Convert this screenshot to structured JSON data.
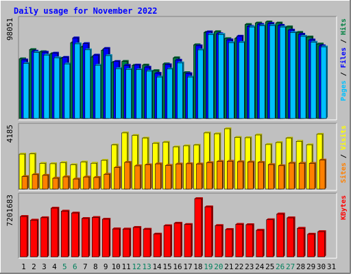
{
  "chart_data": {
    "type": "bar",
    "title": "Daily usage for November 2022",
    "x": [
      "1",
      "2",
      "3",
      "4",
      "5",
      "6",
      "7",
      "8",
      "9",
      "10",
      "11",
      "12",
      "13",
      "14",
      "15",
      "16",
      "17",
      "18",
      "19",
      "20",
      "21",
      "22",
      "23",
      "24",
      "25",
      "26",
      "27",
      "28",
      "29",
      "30",
      "31"
    ],
    "weekend_days": [
      5,
      6,
      12,
      13,
      19,
      20,
      26,
      27
    ],
    "panels": [
      {
        "name": "hits_files_pages",
        "max_label": "98051",
        "ylabel_parts": [
          "Pages",
          "Files",
          "Hits"
        ],
        "series": [
          {
            "name": "Hits",
            "color": "#008040",
            "values": [
              60500,
              69900,
              67700,
              65700,
              61100,
              76800,
              72600,
              62400,
              69200,
              56900,
              57900,
              53900,
              54200,
              48500,
              55400,
              61500,
              46500,
              74700,
              87300,
              88000,
              81000,
              81200,
              95300,
              96800,
              97900,
              96800,
              92900,
              87300,
              82600,
              75500,
              null
            ]
          },
          {
            "name": "Files",
            "color": "#0000ff",
            "values": [
              59400,
              68200,
              67200,
              66200,
              62000,
              81700,
              75900,
              64200,
              71000,
              57800,
              53900,
              54200,
              52000,
              45800,
              54500,
              59100,
              45500,
              73700,
              87800,
              85900,
              79700,
              83400,
              93400,
              95400,
              96300,
              94400,
              89600,
              85400,
              79600,
              73700,
              null
            ]
          },
          {
            "name": "Pages",
            "color": "#00c0ff",
            "values": [
              55800,
              67000,
              64300,
              61500,
              55300,
              75700,
              69600,
              54000,
              63800,
              50500,
              49800,
              49500,
              48000,
              42000,
              50200,
              56300,
              42000,
              69500,
              85200,
              85200,
              76900,
              77200,
              92800,
              94000,
              94300,
              92700,
              87100,
              83300,
              77300,
              72600,
              null
            ]
          }
        ]
      },
      {
        "name": "visits_sites",
        "max_label": "4185",
        "ylabel_parts": [
          "Sites",
          "Visits"
        ],
        "series": [
          {
            "name": "Visits",
            "color": "#ffff00",
            "values": [
              2310,
              2330,
              1700,
              1680,
              1750,
              1610,
              1790,
              1710,
              1900,
              2920,
              3720,
              3550,
              3370,
              3030,
              3100,
              2790,
              2860,
              2910,
              3720,
              3660,
              3990,
              3420,
              3400,
              3580,
              2950,
              3080,
              3370,
              3160,
              2930,
              3630,
              null
            ]
          },
          {
            "name": "Sites",
            "color": "#ff8000",
            "values": [
              830,
              960,
              910,
              720,
              810,
              670,
              800,
              770,
              980,
              1430,
              1770,
              1540,
              1610,
              1670,
              1570,
              1660,
              1680,
              1660,
              1750,
              1830,
              1840,
              1810,
              1790,
              1770,
              1620,
              1550,
              1720,
              1710,
              1700,
              1920,
              null
            ]
          }
        ]
      },
      {
        "name": "kbytes",
        "max_label": "7201683",
        "ylabel_parts": [
          "KBytes"
        ],
        "series": [
          {
            "name": "KBytes",
            "color": "#ff0000",
            "values": [
              4997000,
              4547000,
              4844000,
              6021000,
              5657000,
              5421000,
              4749000,
              4870000,
              4663000,
              3459000,
              3445000,
              3645000,
              3425000,
              2817000,
              3859000,
              4164000,
              4008000,
              7201683,
              6184000,
              3875000,
              3388000,
              4028000,
              3983000,
              3292000,
              4597000,
              5310000,
              4829000,
              3534000,
              2802000,
              3125000,
              null
            ]
          }
        ]
      }
    ]
  }
}
